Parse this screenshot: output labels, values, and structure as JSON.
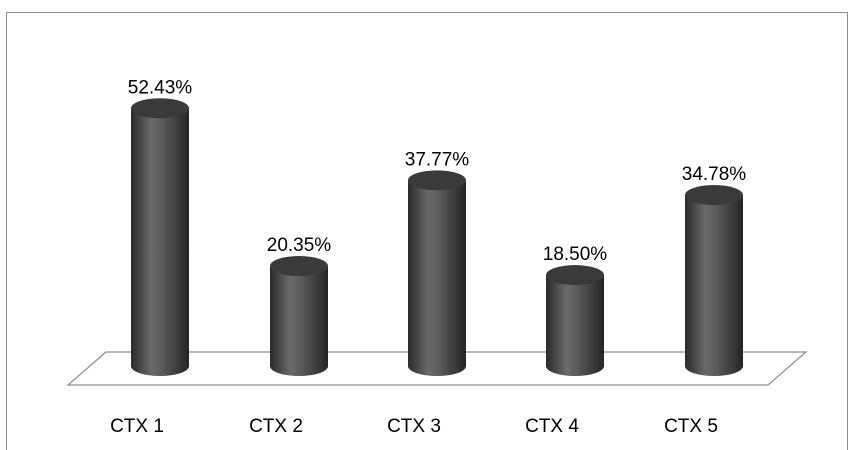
{
  "chart_data": {
    "type": "bar",
    "style": "3d-cylinder",
    "categories": [
      "CTX 1",
      "CTX 2",
      "CTX 3",
      "CTX 4",
      "CTX 5"
    ],
    "values": [
      52.43,
      20.35,
      37.77,
      18.5,
      34.78
    ],
    "data_labels": [
      "52.43%",
      "20.35%",
      "37.77%",
      "18.50%",
      "34.78%"
    ],
    "ylim": [
      0,
      60
    ],
    "grid": false,
    "legend": "none",
    "colors": {
      "bar": "#4a4a4a",
      "floor": "#ffffff",
      "floor_edge": "#8c8c8c"
    }
  }
}
